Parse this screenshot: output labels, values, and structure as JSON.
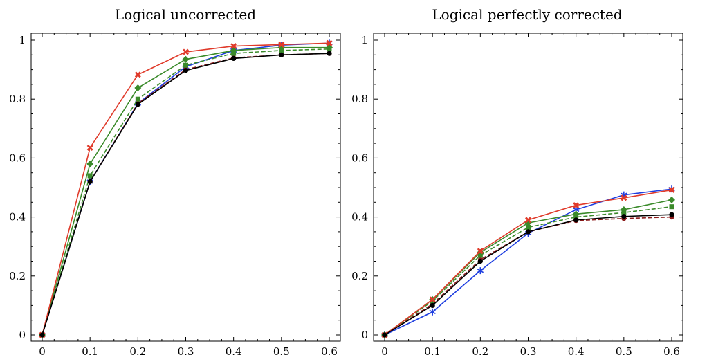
{
  "chart_data": [
    {
      "type": "line",
      "title": "Logical uncorrected",
      "xlabel": "",
      "ylabel": "",
      "xlim": [
        0,
        0.6
      ],
      "ylim": [
        0,
        1
      ],
      "grid": false,
      "x_ticks": [
        "0",
        "0.1",
        "0.2",
        "0.3",
        "0.4",
        "0.5",
        "0.6"
      ],
      "y_ticks": [
        "0",
        "0.2",
        "0.4",
        "0.6",
        "0.8",
        "1"
      ],
      "x": [
        0,
        0.1,
        0.2,
        0.3,
        0.4,
        0.5,
        0.6
      ],
      "series": [
        {
          "color": "#1f3fe0",
          "marker": "star",
          "dash": "solid",
          "values": [
            0,
            0.52,
            0.785,
            0.91,
            0.965,
            0.983,
            0.99
          ]
        },
        {
          "color": "#8b1a1a",
          "marker": "circle",
          "dash": "dashed",
          "values": [
            0,
            0.52,
            0.785,
            0.9,
            0.94,
            0.95,
            0.955
          ]
        },
        {
          "color": "#3a8a2a",
          "marker": "square",
          "dash": "dashed",
          "values": [
            0,
            0.54,
            0.8,
            0.915,
            0.955,
            0.965,
            0.97
          ]
        },
        {
          "color": "#3a8a2a",
          "marker": "diamond",
          "dash": "solid",
          "values": [
            0,
            0.58,
            0.838,
            0.935,
            0.965,
            0.975,
            0.975
          ]
        },
        {
          "color": "#e03a2a",
          "marker": "x",
          "dash": "solid",
          "values": [
            0,
            0.635,
            0.883,
            0.96,
            0.98,
            0.985,
            0.99
          ]
        },
        {
          "color": "#000000",
          "marker": "circle",
          "dash": "solid",
          "values": [
            0,
            0.52,
            0.782,
            0.897,
            0.938,
            0.95,
            0.955
          ]
        }
      ]
    },
    {
      "type": "line",
      "title": "Logical perfectly corrected",
      "xlabel": "",
      "ylabel": "",
      "xlim": [
        0,
        0.6
      ],
      "ylim": [
        0,
        1
      ],
      "grid": false,
      "x_ticks": [
        "0",
        "0.1",
        "0.2",
        "0.3",
        "0.4",
        "0.5",
        "0.6"
      ],
      "y_ticks": [
        "0",
        "0.2",
        "0.4",
        "0.6",
        "0.8",
        "1"
      ],
      "x": [
        0,
        0.1,
        0.2,
        0.3,
        0.4,
        0.5,
        0.6
      ],
      "series": [
        {
          "color": "#1f3fe0",
          "marker": "star",
          "dash": "solid",
          "values": [
            0,
            0.078,
            0.218,
            0.345,
            0.425,
            0.475,
            0.495
          ]
        },
        {
          "color": "#8b1a1a",
          "marker": "circle",
          "dash": "dashed",
          "values": [
            0,
            0.105,
            0.255,
            0.35,
            0.388,
            0.395,
            0.4
          ]
        },
        {
          "color": "#3a8a2a",
          "marker": "square",
          "dash": "dashed",
          "values": [
            0,
            0.115,
            0.27,
            0.365,
            0.4,
            0.415,
            0.435
          ]
        },
        {
          "color": "#3a8a2a",
          "marker": "diamond",
          "dash": "solid",
          "values": [
            0,
            0.12,
            0.28,
            0.38,
            0.41,
            0.425,
            0.458
          ]
        },
        {
          "color": "#e03a2a",
          "marker": "x",
          "dash": "solid",
          "values": [
            0,
            0.12,
            0.285,
            0.39,
            0.44,
            0.465,
            0.492
          ]
        },
        {
          "color": "#000000",
          "marker": "circle",
          "dash": "solid",
          "values": [
            0,
            0.1,
            0.25,
            0.35,
            0.39,
            0.402,
            0.408
          ]
        }
      ]
    }
  ]
}
